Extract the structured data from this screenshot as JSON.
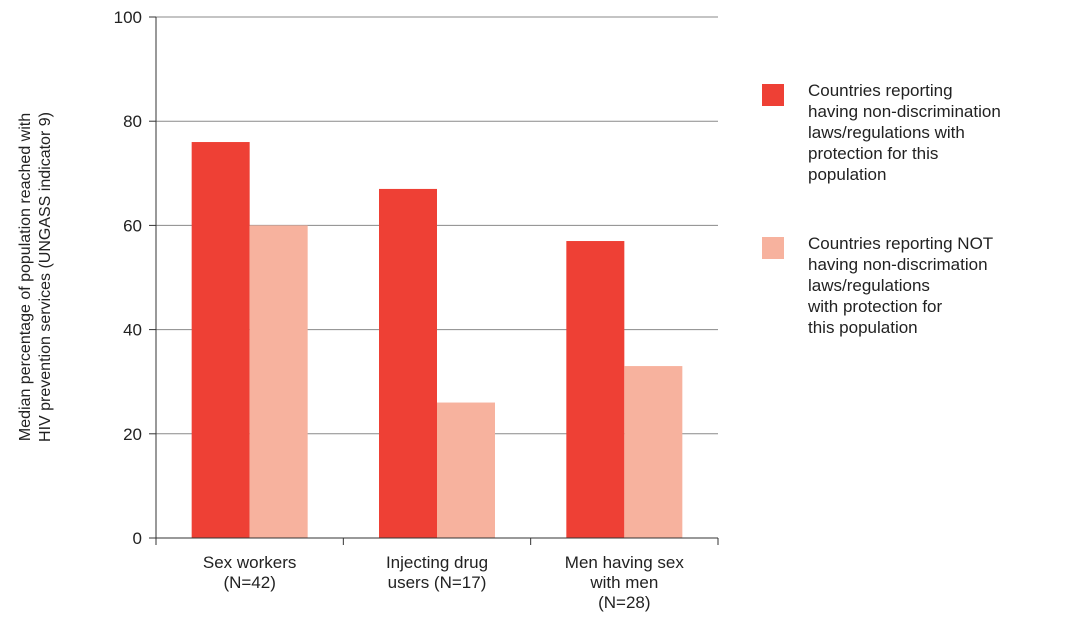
{
  "chart_data": {
    "type": "bar",
    "categories": [
      [
        "Sex workers",
        "(N=42)"
      ],
      [
        "Injecting drug",
        "users (N=17)"
      ],
      [
        "Men having sex",
        "with men",
        "(N=28)"
      ]
    ],
    "ylabel": [
      "Median percentage of population reached with",
      "HIV prevention services (UNGASS indicator 9)"
    ],
    "ylim": [
      0,
      100
    ],
    "yticks": [
      0,
      20,
      40,
      60,
      80,
      100
    ],
    "grid": true,
    "legend_position": "right",
    "series": [
      {
        "name": [
          "Countries reporting",
          "having non-discrimination",
          "laws/regulations with",
          "protection for this",
          "population"
        ],
        "color": "#ee4035",
        "values": [
          76,
          67,
          57
        ]
      },
      {
        "name": [
          "Countries reporting NOT",
          "having non-discrimation",
          "laws/regulations",
          "with protection for",
          "this population"
        ],
        "color": "#f7b29e",
        "values": [
          60,
          26,
          33
        ]
      }
    ]
  }
}
